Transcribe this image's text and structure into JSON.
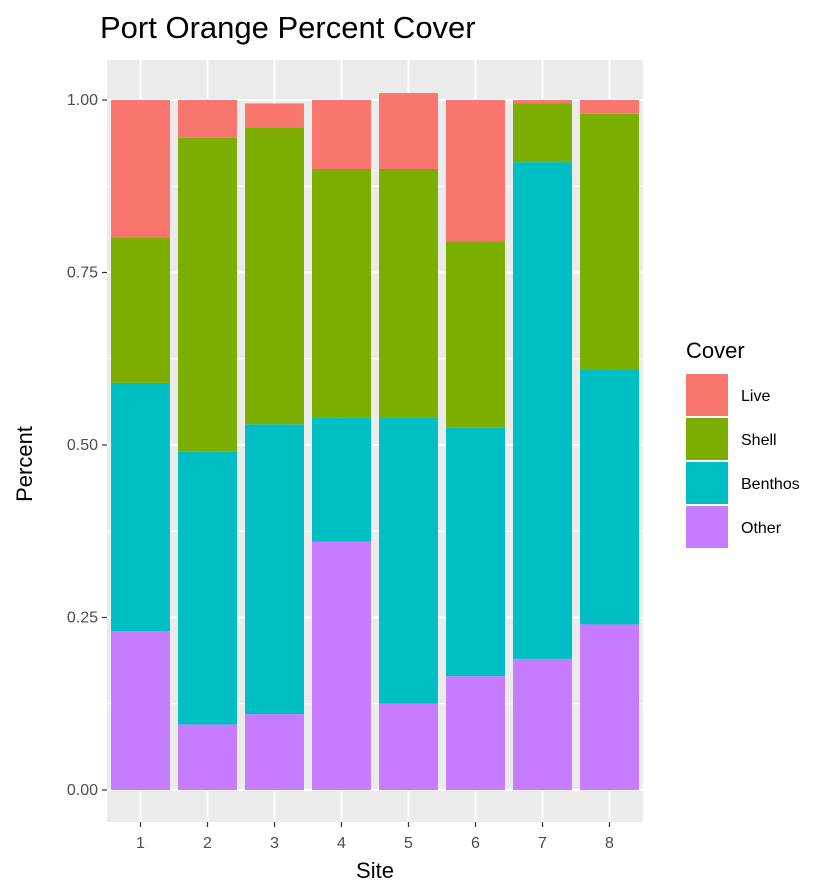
{
  "chart_data": {
    "type": "bar",
    "stacked": true,
    "title": "Port Orange Percent Cover",
    "xlabel": "Site",
    "ylabel": "Percent",
    "categories": [
      "1",
      "2",
      "3",
      "4",
      "5",
      "6",
      "7",
      "8"
    ],
    "ylim": [
      -0.05,
      1.05
    ],
    "yticks": [
      0.0,
      0.25,
      0.5,
      0.75,
      1.0
    ],
    "ytick_labels": [
      "0.00",
      "0.25",
      "0.50",
      "0.75",
      "1.00"
    ],
    "grid": true,
    "legend_title": "Cover",
    "legend_position": "right",
    "series": [
      {
        "name": "Other",
        "color": "#C77CFF",
        "values": [
          0.23,
          0.095,
          0.11,
          0.36,
          0.125,
          0.165,
          0.19,
          0.24
        ]
      },
      {
        "name": "Benthos",
        "color": "#00BFC4",
        "values": [
          0.36,
          0.395,
          0.42,
          0.18,
          0.415,
          0.36,
          0.72,
          0.37
        ]
      },
      {
        "name": "Shell",
        "color": "#7CAE00",
        "values": [
          0.21,
          0.455,
          0.43,
          0.36,
          0.36,
          0.27,
          0.085,
          0.37
        ]
      },
      {
        "name": "Live",
        "color": "#F8766D",
        "values": [
          0.2,
          0.055,
          0.035,
          0.1,
          0.11,
          0.205,
          0.005,
          0.02
        ]
      }
    ],
    "legend_order": [
      "Live",
      "Shell",
      "Benthos",
      "Other"
    ],
    "panel_background": "#EBEBEB",
    "grid_color": "#FFFFFF"
  }
}
